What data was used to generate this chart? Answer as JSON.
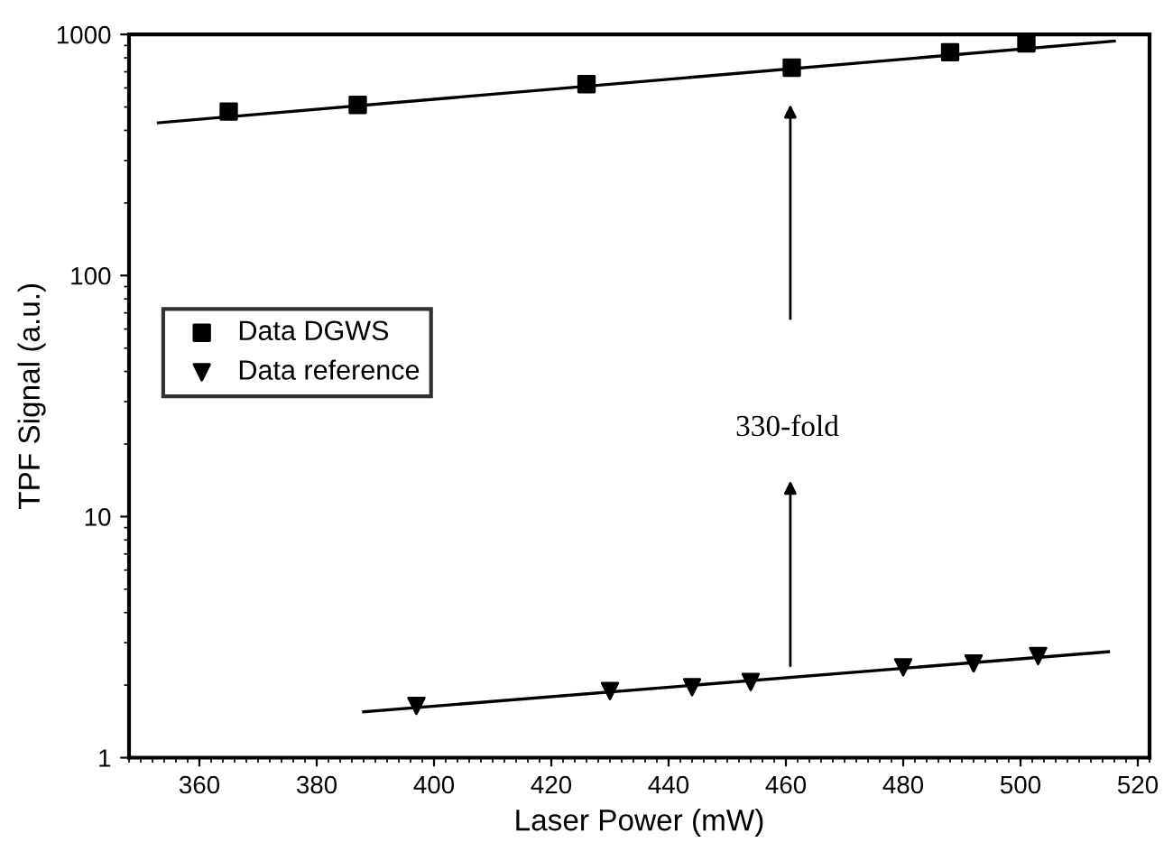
{
  "chart_data": {
    "type": "scatter",
    "xlabel": "Laser Power (mW)",
    "ylabel": "TPF Signal (a.u.)",
    "log": "y",
    "xlim": [
      348,
      522
    ],
    "xticks": [
      360,
      380,
      400,
      420,
      440,
      460,
      480,
      500,
      520
    ],
    "ylim": [
      1,
      1000
    ],
    "yticks": [
      1,
      10,
      100,
      1000
    ],
    "series": [
      {
        "name": "Data DGWS",
        "marker": "square",
        "color": "#000000",
        "x": [
          365,
          387,
          426,
          461,
          488,
          501
        ],
        "values": [
          479,
          510,
          622,
          728,
          844,
          919
        ]
      },
      {
        "name": "Data reference",
        "marker": "triangle",
        "color": "#000000",
        "x": [
          397,
          430,
          444,
          454,
          480,
          492,
          503
        ],
        "values": [
          1.64,
          1.89,
          1.96,
          2.06,
          2.37,
          2.46,
          2.64
        ]
      },
      {
        "type": "line",
        "color": "#000000",
        "x": [
          353,
          516
        ],
        "values": [
          430,
          938
        ]
      },
      {
        "type": "line",
        "color": "#000000",
        "x": [
          388,
          515
        ],
        "values": [
          1.55,
          2.75
        ]
      }
    ],
    "annotations": [
      "330-fold"
    ],
    "legend": "left",
    "grid": false
  }
}
